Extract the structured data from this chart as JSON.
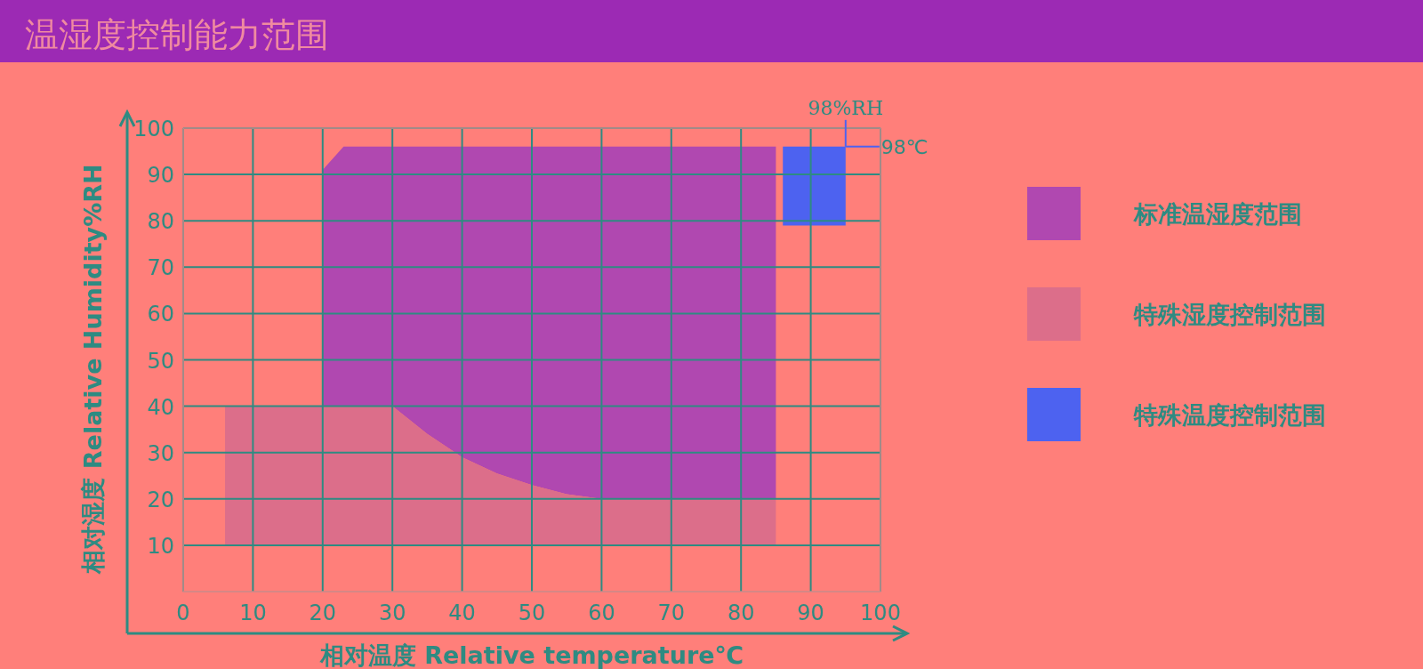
{
  "chart_data": {
    "type": "area",
    "title": "温湿度控制能力范围",
    "xlabel": "相对温度 Relative temperature℃",
    "ylabel": "相对湿度 Relative Humidity%RH",
    "xlim": [
      0,
      100
    ],
    "ylim": [
      0,
      100
    ],
    "xticks": [
      0,
      10,
      20,
      30,
      40,
      50,
      60,
      70,
      80,
      90,
      100
    ],
    "yticks": [
      10,
      20,
      30,
      40,
      50,
      60,
      70,
      80,
      90,
      100
    ],
    "grid": true,
    "legend": "right",
    "series": [
      {
        "name": "特殊湿度控制范围",
        "color": "#dc6e8a",
        "x": [
          6,
          30,
          35,
          40,
          45,
          50,
          55,
          60,
          85
        ],
        "values": [
          null,
          null,
          null,
          null,
          null,
          null,
          null,
          null,
          null
        ],
        "lower": [
          10,
          10,
          10,
          10,
          10,
          10,
          10,
          10,
          10
        ],
        "upper": [
          40,
          40,
          34,
          29,
          25.5,
          23,
          21,
          20,
          20
        ]
      },
      {
        "name": "标准温湿度范围",
        "color": "#b048b0",
        "x": [
          20,
          23,
          30,
          35,
          40,
          45,
          50,
          55,
          60,
          85
        ],
        "values": [
          null,
          null,
          null,
          null,
          null,
          null,
          null,
          null,
          null,
          null
        ],
        "lower": [
          40,
          40,
          40,
          34,
          29,
          25.5,
          23,
          21,
          20,
          20
        ],
        "upper": [
          91,
          96,
          96,
          96,
          96,
          96,
          96,
          96,
          96,
          96
        ]
      },
      {
        "name": "特殊温度控制范围",
        "color": "#4d62f0",
        "x": [
          86,
          95
        ],
        "values": [
          null,
          null
        ],
        "lower": [
          79,
          79
        ],
        "upper": [
          96,
          96
        ]
      }
    ],
    "annotations": [
      {
        "text": "98%RH",
        "x": 95,
        "y": 96
      },
      {
        "text": "98℃",
        "x": 95,
        "y": 96
      }
    ]
  }
}
